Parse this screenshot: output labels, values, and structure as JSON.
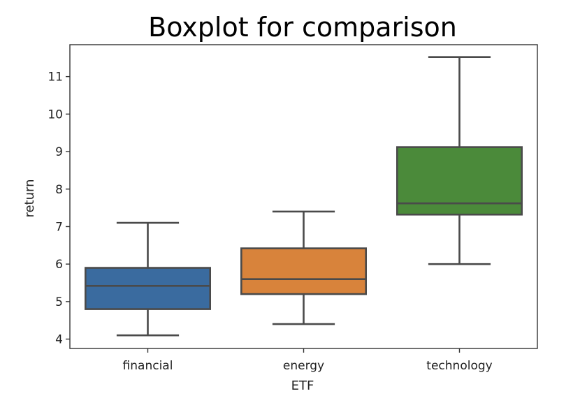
{
  "chart_data": {
    "type": "box",
    "title": "Boxplot for comparison",
    "xlabel": "ETF",
    "ylabel": "return",
    "categories": [
      "financial",
      "energy",
      "technology"
    ],
    "yticks": [
      4,
      5,
      6,
      7,
      8,
      9,
      10,
      11
    ],
    "ytick_labels": [
      "4",
      "5",
      "6",
      "7",
      "8",
      "9",
      "10",
      "11"
    ],
    "ylim": [
      3.75,
      11.85
    ],
    "grid": false,
    "boxes": [
      {
        "category": "financial",
        "whisker_low": 4.1,
        "q1": 4.8,
        "median": 5.42,
        "q3": 5.9,
        "whisker_high": 7.1,
        "color": "#3a6b9f"
      },
      {
        "category": "energy",
        "whisker_low": 4.4,
        "q1": 5.2,
        "median": 5.6,
        "q3": 6.42,
        "whisker_high": 7.4,
        "color": "#d8833b"
      },
      {
        "category": "technology",
        "whisker_low": 6.0,
        "q1": 7.32,
        "median": 7.62,
        "q3": 9.12,
        "whisker_high": 11.52,
        "color": "#4b8a3a"
      }
    ],
    "line_color": "#4a4a4a"
  }
}
